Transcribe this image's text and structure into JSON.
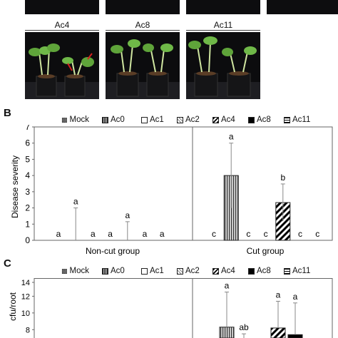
{
  "panel_b": {
    "letter": "B"
  },
  "panel_c": {
    "letter": "C"
  },
  "photos": [
    {
      "label": "Ac4"
    },
    {
      "label": "Ac8"
    },
    {
      "label": "Ac11"
    }
  ],
  "legend": [
    "Mock",
    "Ac0",
    "Ac1",
    "Ac2",
    "Ac4",
    "Ac8",
    "Ac11"
  ],
  "chart_data": [
    {
      "type": "bar",
      "title": "",
      "ylabel": "Disease severity",
      "xlabel": "",
      "ylim": [
        0,
        7
      ],
      "yticks": [
        0,
        1,
        2,
        3,
        4,
        5,
        6,
        7
      ],
      "groups": [
        "Non-cut group",
        "Cut group"
      ],
      "series": [
        {
          "name": "Mock",
          "values": [
            0,
            0
          ],
          "errors": [
            0,
            0
          ],
          "letters": [
            "a",
            "c"
          ]
        },
        {
          "name": "Ac0",
          "values": [
            0,
            4.0
          ],
          "errors": [
            2.0,
            2.0
          ],
          "letters": [
            "a",
            "a"
          ]
        },
        {
          "name": "Ac1",
          "values": [
            0,
            0
          ],
          "errors": [
            0,
            0
          ],
          "letters": [
            "a",
            "c"
          ]
        },
        {
          "name": "Ac2",
          "values": [
            0,
            0
          ],
          "errors": [
            0,
            0
          ],
          "letters": [
            "a",
            "c"
          ]
        },
        {
          "name": "Ac4",
          "values": [
            0,
            2.33
          ],
          "errors": [
            1.15,
            1.15
          ],
          "letters": [
            "a",
            "b"
          ]
        },
        {
          "name": "Ac8",
          "values": [
            0,
            0
          ],
          "errors": [
            0,
            0
          ],
          "letters": [
            "a",
            "c"
          ]
        },
        {
          "name": "Ac11",
          "values": [
            0,
            0
          ],
          "errors": [
            0,
            0
          ],
          "letters": [
            "a",
            "c"
          ]
        }
      ]
    },
    {
      "type": "bar",
      "title": "",
      "ylabel": "cfu/root",
      "xlabel": "",
      "ylim_visible": [
        7,
        14
      ],
      "yticks": [
        8,
        10,
        12,
        14
      ],
      "series": [
        {
          "name": "Ac0",
          "values": [
            null,
            8.3
          ],
          "errors": [
            null,
            4.2
          ],
          "letters": [
            null,
            "a"
          ]
        },
        {
          "name": "Ac1",
          "values": [
            null,
            null
          ],
          "errors": [
            null,
            7.5
          ],
          "letters": [
            null,
            "ab"
          ]
        },
        {
          "name": "Ac4",
          "values": [
            null,
            8.2
          ],
          "errors": [
            null,
            3.2
          ],
          "letters": [
            null,
            "a"
          ]
        },
        {
          "name": "Ac8",
          "values": [
            null,
            7.4
          ],
          "errors": [
            null,
            3.8
          ],
          "letters": [
            null,
            "a"
          ]
        }
      ]
    }
  ]
}
